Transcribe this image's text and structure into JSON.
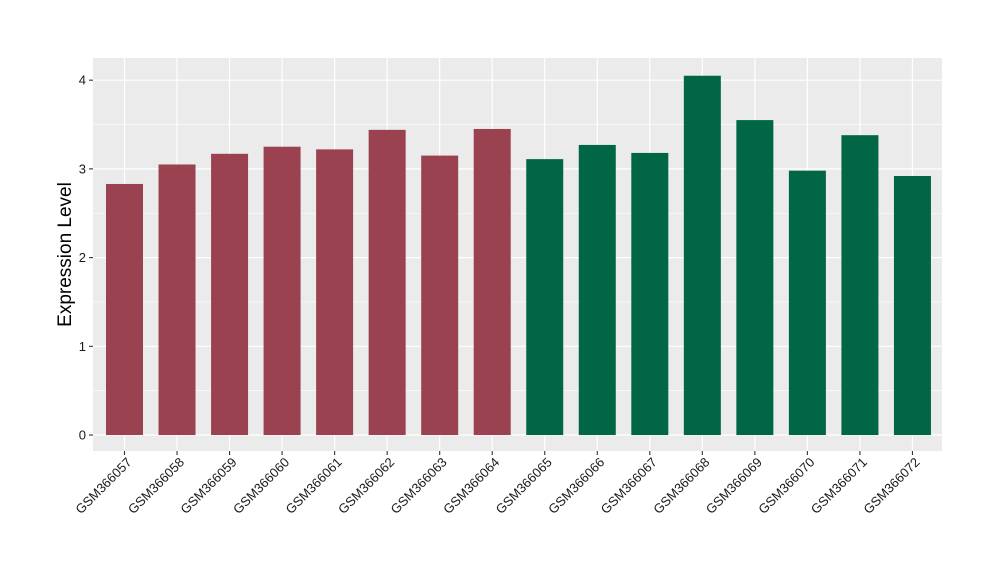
{
  "chart_data": {
    "type": "bar",
    "title": "",
    "xlabel": "",
    "ylabel": "Expression Level",
    "ylim": [
      -0.18,
      4.25
    ],
    "yticks": [
      0,
      1,
      2,
      3,
      4
    ],
    "grid": true,
    "legend": "none",
    "categories": [
      "GSM366057",
      "GSM366058",
      "GSM366059",
      "GSM366060",
      "GSM366061",
      "GSM366062",
      "GSM366063",
      "GSM366064",
      "GSM366065",
      "GSM366066",
      "GSM366067",
      "GSM366068",
      "GSM366069",
      "GSM366070",
      "GSM366071",
      "GSM366072"
    ],
    "values": [
      2.83,
      3.05,
      3.17,
      3.25,
      3.22,
      3.44,
      3.15,
      3.45,
      3.11,
      3.27,
      3.18,
      4.05,
      3.55,
      2.98,
      3.38,
      2.92
    ],
    "groups": [
      "group-1",
      "group-1",
      "group-1",
      "group-1",
      "group-1",
      "group-1",
      "group-1",
      "group-1",
      "group-2",
      "group-2",
      "group-2",
      "group-2",
      "group-2",
      "group-2",
      "group-2",
      "group-2"
    ],
    "colors": {
      "group-1": "#9b4250",
      "group-2": "#006645",
      "panel_background": "#ebebeb",
      "grid": "#ffffff"
    }
  }
}
